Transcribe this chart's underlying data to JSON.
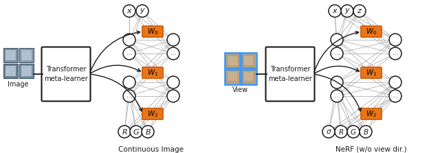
{
  "bg_color": "#ffffff",
  "orange": "#E8751A",
  "gray_line": "#aaaaaa",
  "black": "#1a1a1a",
  "blue_border": "#4499ee",
  "fig_width": 6.4,
  "fig_height": 2.23,
  "caption_left": "Continuous Image",
  "caption_right": "NeRF (w/o view dir.)",
  "label_image": "Image",
  "label_view": "View",
  "transformer_text": "Transformer\nmeta-learner"
}
